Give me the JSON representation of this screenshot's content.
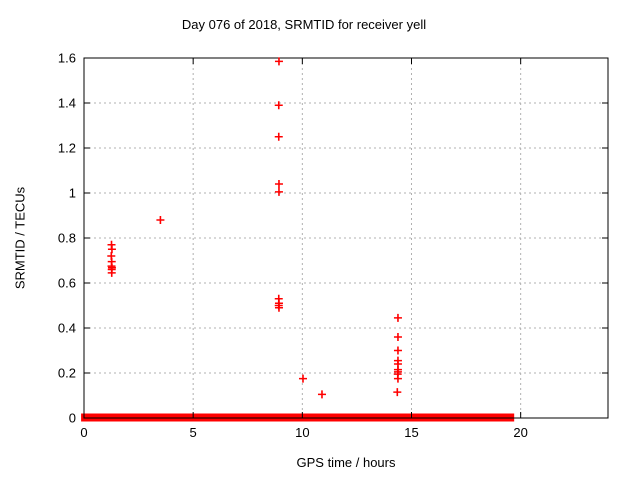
{
  "chart_data": {
    "type": "scatter",
    "title": "Day 076 of 2018, SRMTID for receiver yell",
    "xlabel": "GPS time / hours",
    "ylabel": "SRMTID / TECUs",
    "xlim": [
      0,
      24
    ],
    "ylim": [
      0,
      1.6
    ],
    "x_ticks": [
      0,
      5,
      10,
      15,
      20
    ],
    "x_tick_labels": [
      "0",
      "5",
      "10",
      "15",
      "20"
    ],
    "y_ticks": [
      0,
      0.2,
      0.4,
      0.6,
      0.8,
      1,
      1.2,
      1.4,
      1.6
    ],
    "y_tick_labels": [
      "0",
      "0.2",
      "0.4",
      "0.6",
      "0.8",
      "1",
      "1.2",
      "1.4",
      "1.6"
    ],
    "grid": true,
    "legend": "none",
    "marker": "plus",
    "colors": {
      "marker": "#ff0000",
      "grid": "#b0b0b0",
      "foreground": "#000000",
      "background": "#ffffff"
    },
    "points": [
      [
        1.26,
        0.77
      ],
      [
        1.28,
        0.75
      ],
      [
        1.25,
        0.72
      ],
      [
        1.27,
        0.695
      ],
      [
        1.26,
        0.675
      ],
      [
        1.28,
        0.668
      ],
      [
        1.27,
        0.66
      ],
      [
        1.27,
        0.645
      ],
      [
        3.5,
        0.88
      ],
      [
        8.93,
        1.585
      ],
      [
        8.92,
        1.39
      ],
      [
        8.92,
        1.25
      ],
      [
        8.93,
        1.04
      ],
      [
        8.93,
        1.005
      ],
      [
        8.92,
        0.53
      ],
      [
        8.93,
        0.51
      ],
      [
        8.92,
        0.5
      ],
      [
        8.93,
        0.49
      ],
      [
        10.03,
        0.175
      ],
      [
        10.9,
        0.105
      ],
      [
        14.38,
        0.445
      ],
      [
        14.38,
        0.36
      ],
      [
        14.38,
        0.3
      ],
      [
        14.38,
        0.255
      ],
      [
        14.38,
        0.24
      ],
      [
        14.38,
        0.215
      ],
      [
        14.38,
        0.205
      ],
      [
        14.37,
        0.195
      ],
      [
        14.38,
        0.175
      ],
      [
        14.35,
        0.115
      ]
    ],
    "zero_band_y": 0,
    "zero_band_segments": [
      [
        0.05,
        0.76
      ],
      [
        0.92,
        1.15
      ],
      [
        1.3,
        1.42
      ],
      [
        1.56,
        5.02
      ],
      [
        5.1,
        5.2
      ],
      [
        5.38,
        5.49
      ],
      [
        5.56,
        5.64
      ],
      [
        5.86,
        7.86
      ],
      [
        8.02,
        8.47
      ],
      [
        8.67,
        8.88
      ],
      [
        8.98,
        9.98
      ],
      [
        10.07,
        11.7
      ],
      [
        11.84,
        12.31
      ],
      [
        12.45,
        14.37
      ],
      [
        14.59,
        16.7
      ],
      [
        16.83,
        16.93
      ],
      [
        17.03,
        18.14
      ],
      [
        18.32,
        18.61
      ],
      [
        18.73,
        19.38
      ],
      [
        19.43,
        19.52
      ]
    ]
  }
}
